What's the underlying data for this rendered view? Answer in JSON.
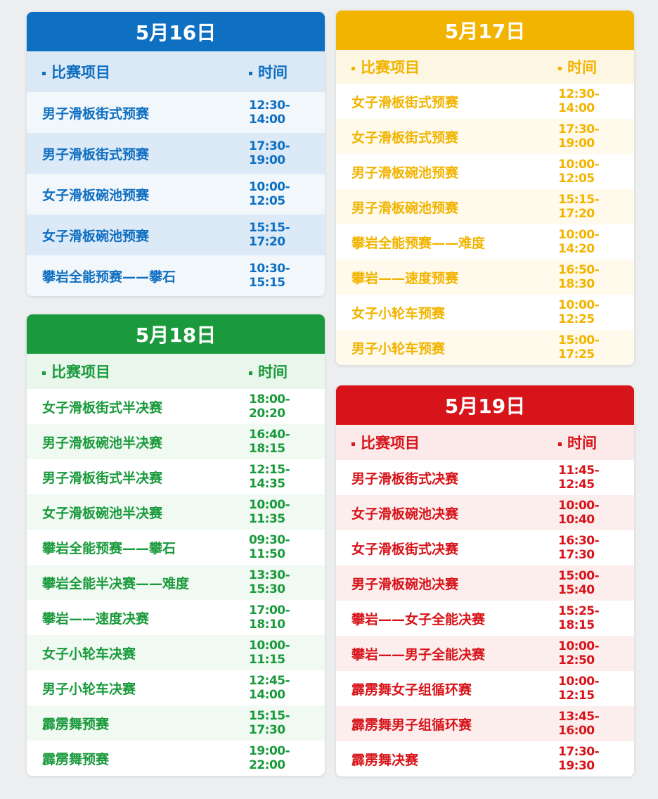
{
  "cards": [
    {
      "id": "may16",
      "date": "5月16日",
      "color": "#0f6fc1",
      "header_bg": "#dbe8f5",
      "row_bg": [
        "#f2f7fc",
        "#dce9f6"
      ],
      "col_item": "比赛项目",
      "col_time": "时间",
      "rows": [
        [
          "男子滑板街式预赛",
          "12:30-14:00"
        ],
        [
          "男子滑板街式预赛",
          "17:30-19:00"
        ],
        [
          "女子滑板碗池预赛",
          "10:00-12:05"
        ],
        [
          "女子滑板碗池预赛",
          "15:15-17:20"
        ],
        [
          "攀岩全能预赛——攀石",
          "10:30-15:15"
        ]
      ]
    },
    {
      "id": "may17",
      "date": "5月17日",
      "color": "#f2b400",
      "header_bg": "#fdf6e2",
      "row_bg": [
        "#ffffff",
        "#fffaec"
      ],
      "col_item": "比赛项目",
      "col_time": "时间",
      "rows": [
        [
          "女子滑板街式预赛",
          "12:30-14:00"
        ],
        [
          "女子滑板街式预赛",
          "17:30-19:00"
        ],
        [
          "男子滑板碗池预赛",
          "10:00-12:05"
        ],
        [
          "男子滑板碗池预赛",
          "15:15-17:20"
        ],
        [
          "攀岩全能预赛——难度",
          "10:00-14:20"
        ],
        [
          "攀岩——速度预赛",
          "16:50-18:30"
        ],
        [
          "女子小轮车预赛",
          "10:00-12:25"
        ],
        [
          "男子小轮车预赛",
          "15:00-17:25"
        ]
      ]
    },
    {
      "id": "may18",
      "date": "5月18日",
      "color": "#1a9a3c",
      "header_bg": "#e9f6ec",
      "row_bg": [
        "#ffffff",
        "#f0f9f2"
      ],
      "col_item": "比赛项目",
      "col_time": "时间",
      "rows": [
        [
          "女子滑板街式半决赛",
          "18:00-20:20"
        ],
        [
          "男子滑板碗池半决赛",
          "16:40-18:15"
        ],
        [
          "男子滑板街式半决赛",
          "12:15-14:35"
        ],
        [
          "女子滑板碗池半决赛",
          "10:00-11:35"
        ],
        [
          "攀岩全能预赛——攀石",
          "09:30-11:50"
        ],
        [
          "攀岩全能半决赛——难度",
          "13:30-15:30"
        ],
        [
          "攀岩——速度决赛",
          "17:00-18:10"
        ],
        [
          "女子小轮车决赛",
          "10:00-11:15"
        ],
        [
          "男子小轮车决赛",
          "12:45-14:00"
        ],
        [
          "霹雳舞预赛",
          "15:15-17:30"
        ],
        [
          "霹雳舞预赛",
          "19:00-22:00"
        ]
      ]
    },
    {
      "id": "may19",
      "date": "5月19日",
      "color": "#d7141a",
      "header_bg": "#fce9e9",
      "row_bg": [
        "#ffffff",
        "#fdeeee"
      ],
      "col_item": "比赛项目",
      "col_time": "时间",
      "rows": [
        [
          "男子滑板街式决赛",
          "11:45-12:45"
        ],
        [
          "女子滑板碗池决赛",
          "10:00-10:40"
        ],
        [
          "女子滑板街式决赛",
          "16:30-17:30"
        ],
        [
          "男子滑板碗池决赛",
          "15:00-15:40"
        ],
        [
          "攀岩——女子全能决赛",
          "15:25-18:15"
        ],
        [
          "攀岩——男子全能决赛",
          "10:00-12:50"
        ],
        [
          "霹雳舞女子组循环赛",
          "10:00-12:15"
        ],
        [
          "霹雳舞男子组循环赛",
          "13:45-16:00"
        ],
        [
          "霹雳舞决赛",
          "17:30-19:30"
        ]
      ]
    }
  ]
}
